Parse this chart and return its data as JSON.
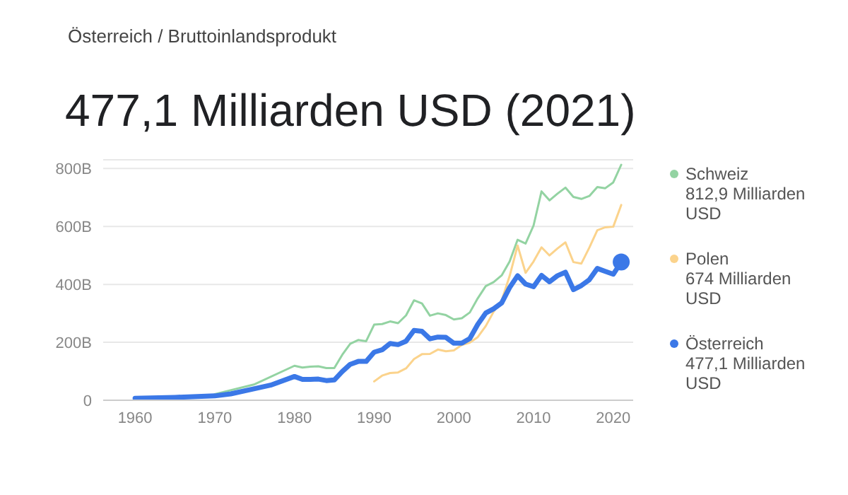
{
  "chart_data": {
    "type": "line",
    "subtitle": "Österreich / Bruttoinlandsprodukt",
    "title": "477,1 Milliarden USD (2021)",
    "xlim": [
      1956,
      2022.5
    ],
    "xticks": [
      1960,
      1970,
      1980,
      1990,
      2000,
      2010,
      2020
    ],
    "ylim": [
      0,
      830
    ],
    "yticks": [
      0,
      {
        "value": 200,
        "label": "200B"
      },
      {
        "value": 400,
        "label": "400B"
      },
      {
        "value": 600,
        "label": "600B"
      },
      {
        "value": 800,
        "label": "800B"
      }
    ],
    "grid": "y",
    "legend": "right",
    "line_style": "solid",
    "annotations": [
      "812,9 Milliarden USD",
      "674 Milliarden USD",
      "477,1 Milliarden USD"
    ],
    "series": [
      {
        "name": "Schweiz",
        "color": "#93d3a2",
        "x": [
          1970,
          1975,
          1980,
          1981,
          1982,
          1983,
          1984,
          1985,
          1986,
          1987,
          1988,
          1989,
          1990,
          1991,
          1992,
          1993,
          1994,
          1995,
          1996,
          1997,
          1998,
          1999,
          2000,
          2001,
          2002,
          2003,
          2004,
          2005,
          2006,
          2007,
          2008,
          2009,
          2010,
          2011,
          2012,
          2013,
          2014,
          2015,
          2016,
          2017,
          2018,
          2019,
          2020,
          2021
        ],
        "values": [
          21,
          55,
          119,
          113,
          116,
          117,
          111,
          111,
          157,
          195,
          208,
          204,
          261,
          263,
          272,
          266,
          293,
          345,
          334,
          292,
          300,
          294,
          279,
          283,
          303,
          352,
          394,
          408,
          431,
          479,
          554,
          541,
          603,
          721,
          690,
          713,
          734,
          702,
          695,
          705,
          736,
          732,
          752,
          812.9
        ]
      },
      {
        "name": "Polen",
        "color": "#fbd38c",
        "x": [
          1990,
          1991,
          1992,
          1993,
          1994,
          1995,
          1996,
          1997,
          1998,
          1999,
          2000,
          2001,
          2002,
          2003,
          2004,
          2005,
          2006,
          2007,
          2008,
          2009,
          2010,
          2011,
          2012,
          2013,
          2014,
          2015,
          2016,
          2017,
          2018,
          2019,
          2020,
          2021
        ],
        "values": [
          65,
          85,
          94,
          96,
          110,
          142,
          159,
          160,
          175,
          169,
          172,
          191,
          199,
          218,
          256,
          306,
          344,
          429,
          534,
          440,
          479,
          528,
          500,
          524,
          545,
          477,
          472,
          527,
          587,
          597,
          599,
          674
        ]
      },
      {
        "name": "Österreich",
        "color": "#3b78e7",
        "x": [
          1960,
          1965,
          1970,
          1972,
          1975,
          1977,
          1980,
          1981,
          1982,
          1983,
          1984,
          1985,
          1986,
          1987,
          1988,
          1989,
          1990,
          1991,
          1992,
          1993,
          1994,
          1995,
          1996,
          1997,
          1998,
          1999,
          2000,
          2001,
          2002,
          2003,
          2004,
          2005,
          2006,
          2007,
          2008,
          2009,
          2010,
          2011,
          2012,
          2013,
          2014,
          2015,
          2016,
          2017,
          2018,
          2019,
          2020,
          2021
        ],
        "values": [
          7,
          10,
          15,
          22,
          40,
          52,
          82,
          72,
          72,
          73,
          68,
          70,
          99,
          124,
          134,
          134,
          166,
          174,
          196,
          192,
          204,
          241,
          238,
          212,
          218,
          217,
          197,
          197,
          213,
          262,
          301,
          316,
          336,
          389,
          430,
          401,
          392,
          431,
          409,
          430,
          442,
          382,
          396,
          416,
          455,
          445,
          435,
          477.1
        ]
      },
      {
        "type": "scatter",
        "color": "#3b78e7",
        "x": [
          2021
        ],
        "values": [
          477.1
        ]
      }
    ]
  }
}
